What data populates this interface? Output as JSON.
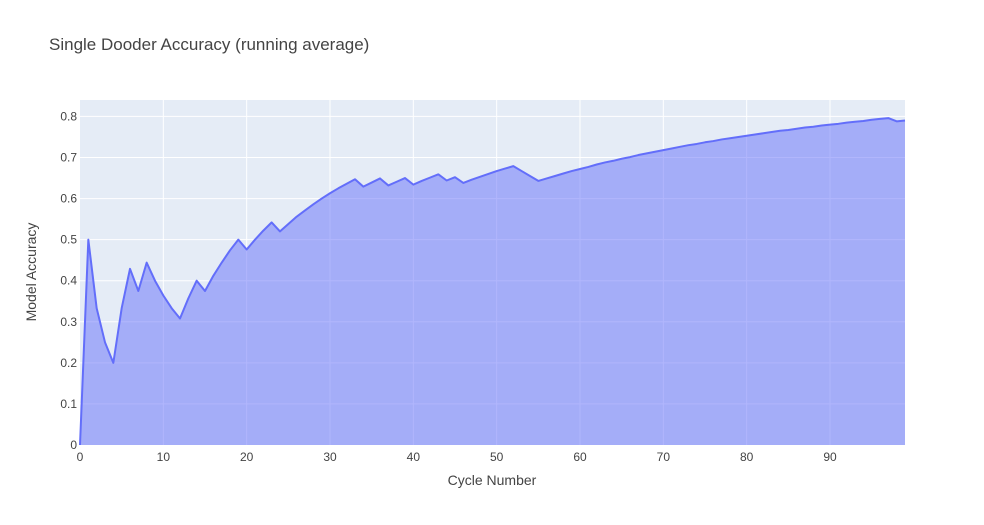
{
  "chart_data": {
    "type": "area",
    "title": "Single Dooder Accuracy (running average)",
    "xlabel": "Cycle Number",
    "ylabel": "Model Accuracy",
    "xlim": [
      0,
      99
    ],
    "ylim": [
      0,
      0.84
    ],
    "xticks": [
      0,
      10,
      20,
      30,
      40,
      50,
      60,
      70,
      80,
      90
    ],
    "xtick_labels": [
      "0",
      "10",
      "20",
      "30",
      "40",
      "50",
      "60",
      "70",
      "80",
      "90"
    ],
    "yticks": [
      0,
      0.1,
      0.2,
      0.3,
      0.4,
      0.5,
      0.6,
      0.7,
      0.8
    ],
    "ytick_labels": [
      "0",
      "0.1",
      "0.2",
      "0.3",
      "0.4",
      "0.5",
      "0.6",
      "0.7",
      "0.8"
    ],
    "grid": true,
    "legend": "none",
    "colors": {
      "plot_background": "#e5ecf6",
      "grid": "#ffffff",
      "line": "#636efa",
      "fill": "#636efa"
    },
    "series": [
      {
        "x": [
          0,
          1,
          2,
          3,
          4,
          5,
          6,
          7,
          8,
          9,
          10,
          11,
          12,
          13,
          14,
          15,
          16,
          17,
          18,
          19,
          20,
          21,
          22,
          23,
          24,
          25,
          26,
          27,
          28,
          29,
          30,
          31,
          32,
          33,
          34,
          35,
          36,
          37,
          38,
          39,
          40,
          41,
          42,
          43,
          44,
          45,
          46,
          47,
          48,
          49,
          50,
          51,
          52,
          53,
          54,
          55,
          56,
          57,
          58,
          59,
          60,
          61,
          62,
          63,
          64,
          65,
          66,
          67,
          68,
          69,
          70,
          71,
          72,
          73,
          74,
          75,
          76,
          77,
          78,
          79,
          80,
          81,
          82,
          83,
          84,
          85,
          86,
          87,
          88,
          89,
          90,
          91,
          92,
          93,
          94,
          95,
          96,
          97,
          98,
          99
        ],
        "values": [
          0,
          0.5,
          0.333,
          0.25,
          0.2,
          0.333,
          0.429,
          0.375,
          0.444,
          0.4,
          0.364,
          0.333,
          0.308,
          0.357,
          0.4,
          0.375,
          0.412,
          0.444,
          0.474,
          0.5,
          0.476,
          0.5,
          0.522,
          0.542,
          0.52,
          0.538,
          0.556,
          0.571,
          0.586,
          0.6,
          0.613,
          0.625,
          0.636,
          0.647,
          0.629,
          0.639,
          0.649,
          0.632,
          0.641,
          0.65,
          0.634,
          0.643,
          0.651,
          0.659,
          0.644,
          0.652,
          0.638,
          0.646,
          0.653,
          0.66,
          0.667,
          0.673,
          0.679,
          0.667,
          0.655,
          0.643,
          0.649,
          0.655,
          0.661,
          0.667,
          0.672,
          0.677,
          0.683,
          0.688,
          0.692,
          0.697,
          0.701,
          0.706,
          0.71,
          0.714,
          0.718,
          0.722,
          0.726,
          0.73,
          0.733,
          0.737,
          0.74,
          0.744,
          0.747,
          0.75,
          0.753,
          0.756,
          0.759,
          0.762,
          0.765,
          0.767,
          0.77,
          0.773,
          0.775,
          0.778,
          0.78,
          0.782,
          0.785,
          0.787,
          0.789,
          0.792,
          0.794,
          0.796,
          0.788,
          0.79
        ]
      }
    ]
  }
}
